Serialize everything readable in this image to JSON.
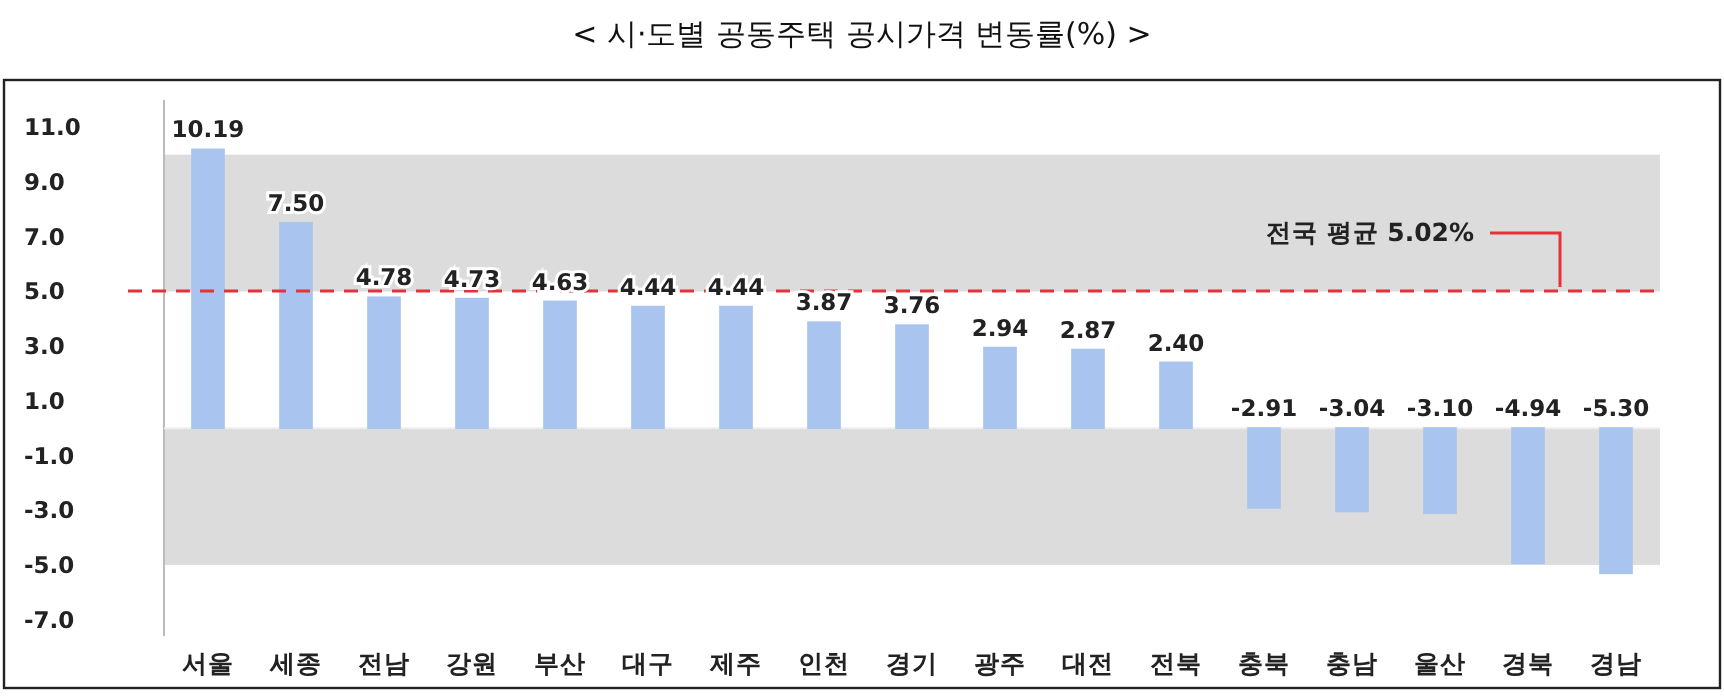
{
  "chart_data": {
    "type": "bar",
    "title": "< 시·도별 공동주택 공시가격 변동률(%) >",
    "categories": [
      "서울",
      "세종",
      "전남",
      "강원",
      "부산",
      "대구",
      "제주",
      "인천",
      "경기",
      "광주",
      "대전",
      "전북",
      "충북",
      "충남",
      "울산",
      "경북",
      "경남"
    ],
    "values": [
      10.19,
      7.5,
      4.78,
      4.73,
      4.63,
      4.44,
      4.44,
      3.87,
      3.76,
      2.94,
      2.87,
      2.4,
      -2.91,
      -3.04,
      -3.1,
      -4.94,
      -5.3
    ],
    "value_labels": [
      "10.19",
      "7.50",
      "4.78",
      "4.73",
      "4.63",
      "4.44",
      "4.44",
      "3.87",
      "3.76",
      "2.94",
      "2.87",
      "2.40",
      "-2.91",
      "-3.04",
      "-3.10",
      "-4.94",
      "-5.30"
    ],
    "color": "#a9c4ee",
    "ylim": [
      -7.6,
      12
    ],
    "yticks": [
      {
        "value": 11,
        "label": "11.0"
      },
      {
        "value": 9,
        "label": "9.0"
      },
      {
        "value": 7,
        "label": "7.0"
      },
      {
        "value": 5,
        "label": "5.0"
      },
      {
        "value": 3,
        "label": "3.0"
      },
      {
        "value": 1,
        "label": "1.0"
      },
      {
        "value": -1,
        "label": "-1.0"
      },
      {
        "value": -3,
        "label": "-3.0"
      },
      {
        "value": -5,
        "label": "-5.0"
      },
      {
        "value": -7,
        "label": "-7.0"
      }
    ],
    "bands": [
      {
        "axis": "y",
        "from": 5,
        "to": 10,
        "color": "#dcdcdc"
      },
      {
        "axis": "y",
        "from": -5,
        "to": 0,
        "color": "#dcdcdc"
      }
    ],
    "ref_lines": [
      {
        "axis": "y",
        "value": 5.02,
        "label": "전국 평균 5.02%",
        "color": "#e8303a",
        "line_style": "dashed"
      }
    ]
  }
}
